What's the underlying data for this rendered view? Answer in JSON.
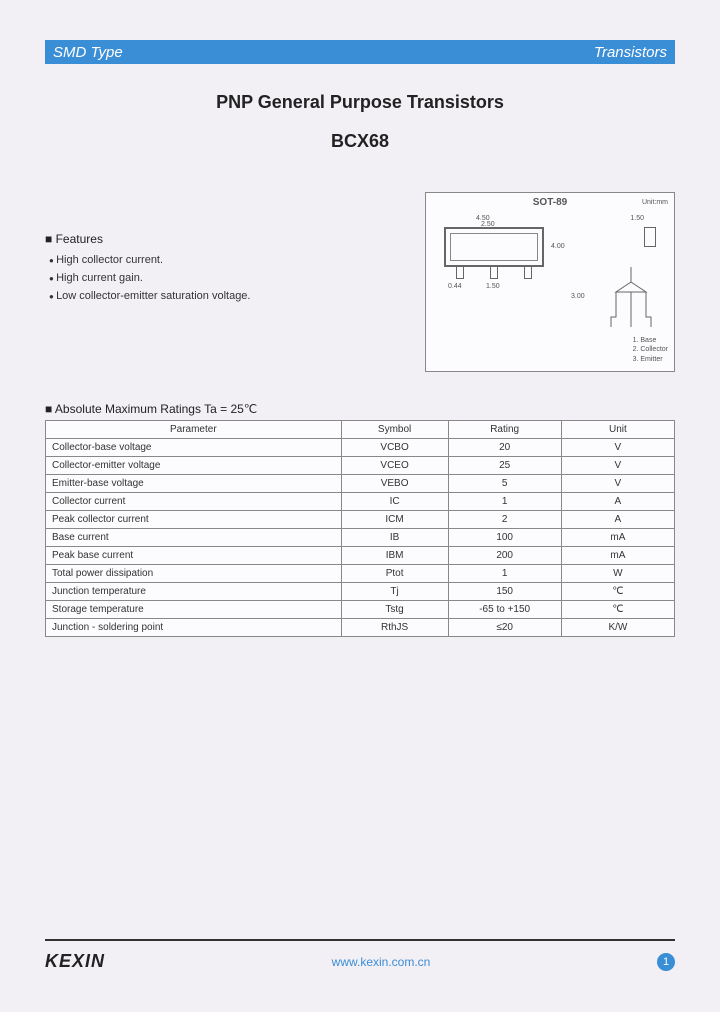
{
  "header": {
    "left": "SMD Type",
    "right": "Transistors"
  },
  "title1": "PNP General Purpose Transistors",
  "title2": "BCX68",
  "features": {
    "title": "Features",
    "items": [
      "High collector current.",
      "High current gain.",
      "Low collector-emitter saturation voltage."
    ]
  },
  "package": {
    "title": "SOT-89",
    "unit": "Unit:mm",
    "dims": {
      "w1": "4.50",
      "w2": "2.50",
      "w3": "1.50",
      "pitch": "1.50",
      "lead": "0.44",
      "h1": "4.00",
      "h2": "2.50",
      "dia": "3.00"
    },
    "pins": [
      "1. Base",
      "2. Collector",
      "3. Emitter"
    ]
  },
  "ratings": {
    "title": "Absolute Maximum Ratings Ta = 25℃",
    "columns": [
      "Parameter",
      "Symbol",
      "Rating",
      "Unit"
    ],
    "rows": [
      [
        "Collector-base voltage",
        "VCBO",
        "20",
        "V"
      ],
      [
        "Collector-emitter voltage",
        "VCEO",
        "25",
        "V"
      ],
      [
        "Emitter-base voltage",
        "VEBO",
        "5",
        "V"
      ],
      [
        "Collector current",
        "IC",
        "1",
        "A"
      ],
      [
        "Peak collector current",
        "ICM",
        "2",
        "A"
      ],
      [
        "Base current",
        "IB",
        "100",
        "mA"
      ],
      [
        "Peak base current",
        "IBM",
        "200",
        "mA"
      ],
      [
        "Total power dissipation",
        "Ptot",
        "1",
        "W"
      ],
      [
        "Junction temperature",
        "Tj",
        "150",
        "℃"
      ],
      [
        "Storage temperature",
        "Tstg",
        "-65 to +150",
        "℃"
      ],
      [
        "Junction - soldering point",
        "RthJS",
        "≤20",
        "K/W"
      ]
    ]
  },
  "footer": {
    "logo": "KEXIN",
    "url": "www.kexin.com.cn",
    "page": "1"
  },
  "colors": {
    "accent": "#3a8ed6",
    "bg": "#f2eff5",
    "text": "#333",
    "border": "#888"
  }
}
